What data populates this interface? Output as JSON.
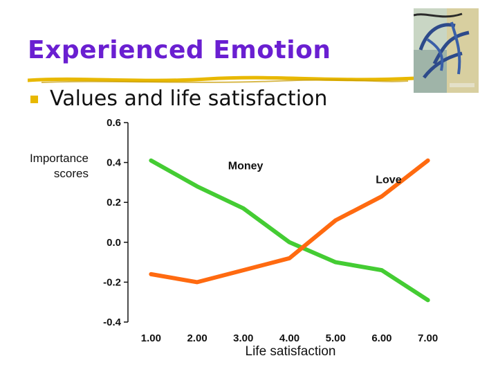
{
  "slide": {
    "title": "Experienced Emotion",
    "bullet": "Values and life satisfaction",
    "title_color": "#6a1fd1",
    "bullet_color": "#e8b800"
  },
  "chart_data": {
    "type": "line",
    "title": "",
    "xlabel": "Life satisfaction",
    "ylabel": "Importance scores",
    "categories": [
      "1.00",
      "2.00",
      "3.00",
      "4.00",
      "5.00",
      "6.00",
      "7.00"
    ],
    "y_ticks": [
      "0.6",
      "0.4",
      "0.2",
      "0.0",
      "-0.2",
      "-0.4"
    ],
    "ylim": [
      -0.4,
      0.6
    ],
    "grid": false,
    "series": [
      {
        "name": "Money",
        "color": "#44cc33",
        "values": [
          0.41,
          0.28,
          0.17,
          0.0,
          -0.1,
          -0.14,
          -0.29
        ]
      },
      {
        "name": "Love",
        "color": "#ff6a10",
        "values": [
          -0.16,
          -0.2,
          -0.14,
          -0.08,
          0.11,
          0.23,
          0.41
        ]
      }
    ]
  }
}
